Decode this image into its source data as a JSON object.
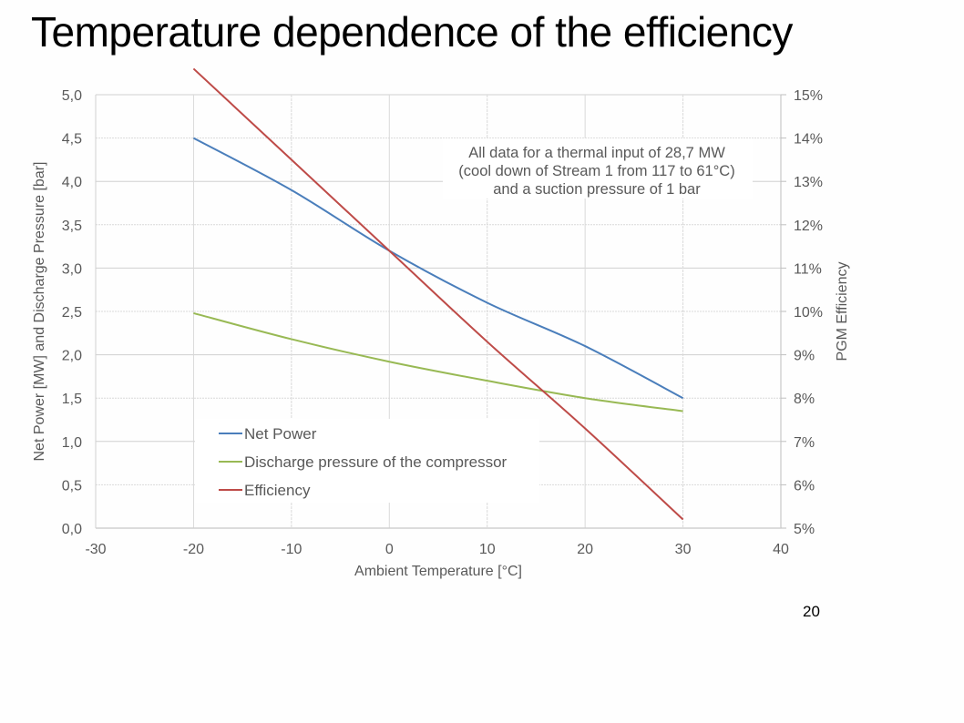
{
  "slide": {
    "title": "Temperature dependence of the efficiency",
    "page_number": "20"
  },
  "chart_data": {
    "type": "line",
    "title": "",
    "xlabel": "Ambient Temperature [°C]",
    "ylabel": "Net Power [MW] and Discharge Pressure [bar]",
    "y2label": "PGM Efficiency",
    "x": [
      -20,
      -10,
      0,
      10,
      20,
      30
    ],
    "xlim": [
      -30,
      40
    ],
    "ylim": [
      0,
      5
    ],
    "y2lim": [
      5,
      15
    ],
    "x_ticks": [
      "-30",
      "-20",
      "-10",
      "0",
      "10",
      "20",
      "30",
      "40"
    ],
    "x_tick_values": [
      -30,
      -20,
      -10,
      0,
      10,
      20,
      30,
      40
    ],
    "y_ticks": [
      "0,0",
      "0,5",
      "1,0",
      "1,5",
      "2,0",
      "2,5",
      "3,0",
      "3,5",
      "4,0",
      "4,5",
      "5,0"
    ],
    "y_tick_values": [
      0,
      0.5,
      1,
      1.5,
      2,
      2.5,
      3,
      3.5,
      4,
      4.5,
      5
    ],
    "y2_ticks": [
      "5%",
      "6%",
      "7%",
      "8%",
      "9%",
      "10%",
      "11%",
      "12%",
      "13%",
      "14%",
      "15%"
    ],
    "y2_tick_values": [
      5,
      6,
      7,
      8,
      9,
      10,
      11,
      12,
      13,
      14,
      15
    ],
    "grid": true,
    "legend_position": "bottom-left inside",
    "series": [
      {
        "name": "Net Power",
        "axis": "left",
        "color": "#4a7ebb",
        "values": [
          4.5,
          3.9,
          3.2,
          2.6,
          2.1,
          1.5
        ]
      },
      {
        "name": "Discharge pressure of the compressor",
        "axis": "left",
        "color": "#98b954",
        "values": [
          2.48,
          2.18,
          1.92,
          1.7,
          1.5,
          1.35
        ]
      },
      {
        "name": "Efficiency",
        "axis": "right",
        "unit": "%",
        "color": "#be4b48",
        "values": [
          15.6,
          13.5,
          11.4,
          9.3,
          7.3,
          5.2
        ]
      }
    ],
    "annotation": [
      "All data for a thermal input of 28,7 MW",
      "(cool down of Stream 1 from 117 to 61°C)",
      "and a suction pressure of 1 bar"
    ]
  }
}
